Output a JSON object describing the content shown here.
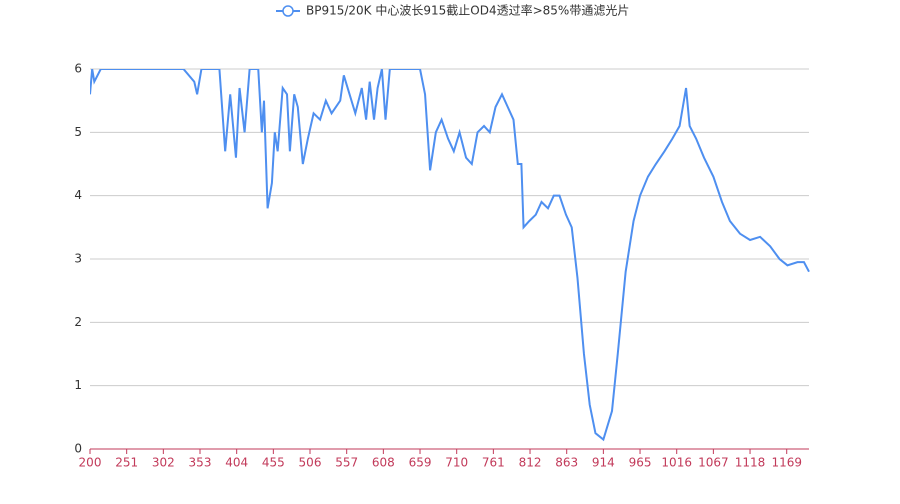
{
  "chart_data": {
    "type": "line",
    "series": [
      {
        "name": "BP915/20K 中心波长915截止OD4透过率>85%带通滤光片",
        "color": "#4e8ff0",
        "x": [
          200,
          203,
          206,
          215,
          230,
          260,
          300,
          330,
          345,
          349,
          355,
          370,
          380,
          388,
          395,
          403,
          408,
          415,
          422,
          434,
          439,
          442,
          447,
          453,
          457,
          461,
          468,
          474,
          478,
          484,
          489,
          496,
          503,
          511,
          520,
          528,
          536,
          548,
          553,
          561,
          569,
          578,
          584,
          589,
          595,
          600,
          606,
          611,
          617,
          624,
          659,
          666,
          673,
          681,
          689,
          698,
          706,
          714,
          723,
          731,
          739,
          748,
          756,
          764,
          773,
          781,
          789,
          795,
          800,
          803,
          811,
          820,
          828,
          837,
          845,
          853,
          862,
          870,
          878,
          887,
          895,
          903,
          914,
          926,
          934,
          945,
          956,
          965,
          976,
          987,
          999,
          1010,
          1020,
          1029,
          1034,
          1043,
          1054,
          1067,
          1079,
          1090,
          1104,
          1118,
          1132,
          1146,
          1159,
          1170,
          1184,
          1193,
          1200
        ],
        "values": [
          5.6,
          6,
          5.8,
          6,
          6,
          6,
          6,
          6,
          5.8,
          5.6,
          6,
          6,
          6,
          4.7,
          5.6,
          4.6,
          5.7,
          5.0,
          6,
          6,
          5.0,
          5.5,
          3.8,
          4.2,
          5.0,
          4.7,
          5.7,
          5.6,
          4.7,
          5.6,
          5.4,
          4.5,
          4.9,
          5.3,
          5.2,
          5.5,
          5.3,
          5.5,
          5.9,
          5.6,
          5.3,
          5.7,
          5.2,
          5.8,
          5.2,
          5.7,
          6,
          5.2,
          6,
          6,
          6,
          5.6,
          4.4,
          5.0,
          5.2,
          4.9,
          4.7,
          5.0,
          4.6,
          4.5,
          5.0,
          5.1,
          5.0,
          5.4,
          5.6,
          5.4,
          5.2,
          4.5,
          4.5,
          3.5,
          3.6,
          3.7,
          3.9,
          3.8,
          4.0,
          4.0,
          3.7,
          3.5,
          2.7,
          1.5,
          0.7,
          0.25,
          0.15,
          0.6,
          1.5,
          2.8,
          3.6,
          4.0,
          4.3,
          4.5,
          4.7,
          4.9,
          5.1,
          5.7,
          5.1,
          4.9,
          4.6,
          4.3,
          3.9,
          3.6,
          3.4,
          3.3,
          3.35,
          3.2,
          3.0,
          2.9,
          2.95,
          2.95,
          2.8
        ]
      }
    ],
    "xlim": [
      200,
      1200
    ],
    "xticks": [
      200,
      251,
      302,
      353,
      404,
      455,
      506,
      557,
      608,
      659,
      710,
      761,
      812,
      863,
      914,
      965,
      1016,
      1067,
      1118,
      1169
    ],
    "ylim": [
      0,
      6
    ],
    "yticks": [
      0,
      1,
      2,
      3,
      4,
      5,
      6
    ],
    "grid": true
  }
}
